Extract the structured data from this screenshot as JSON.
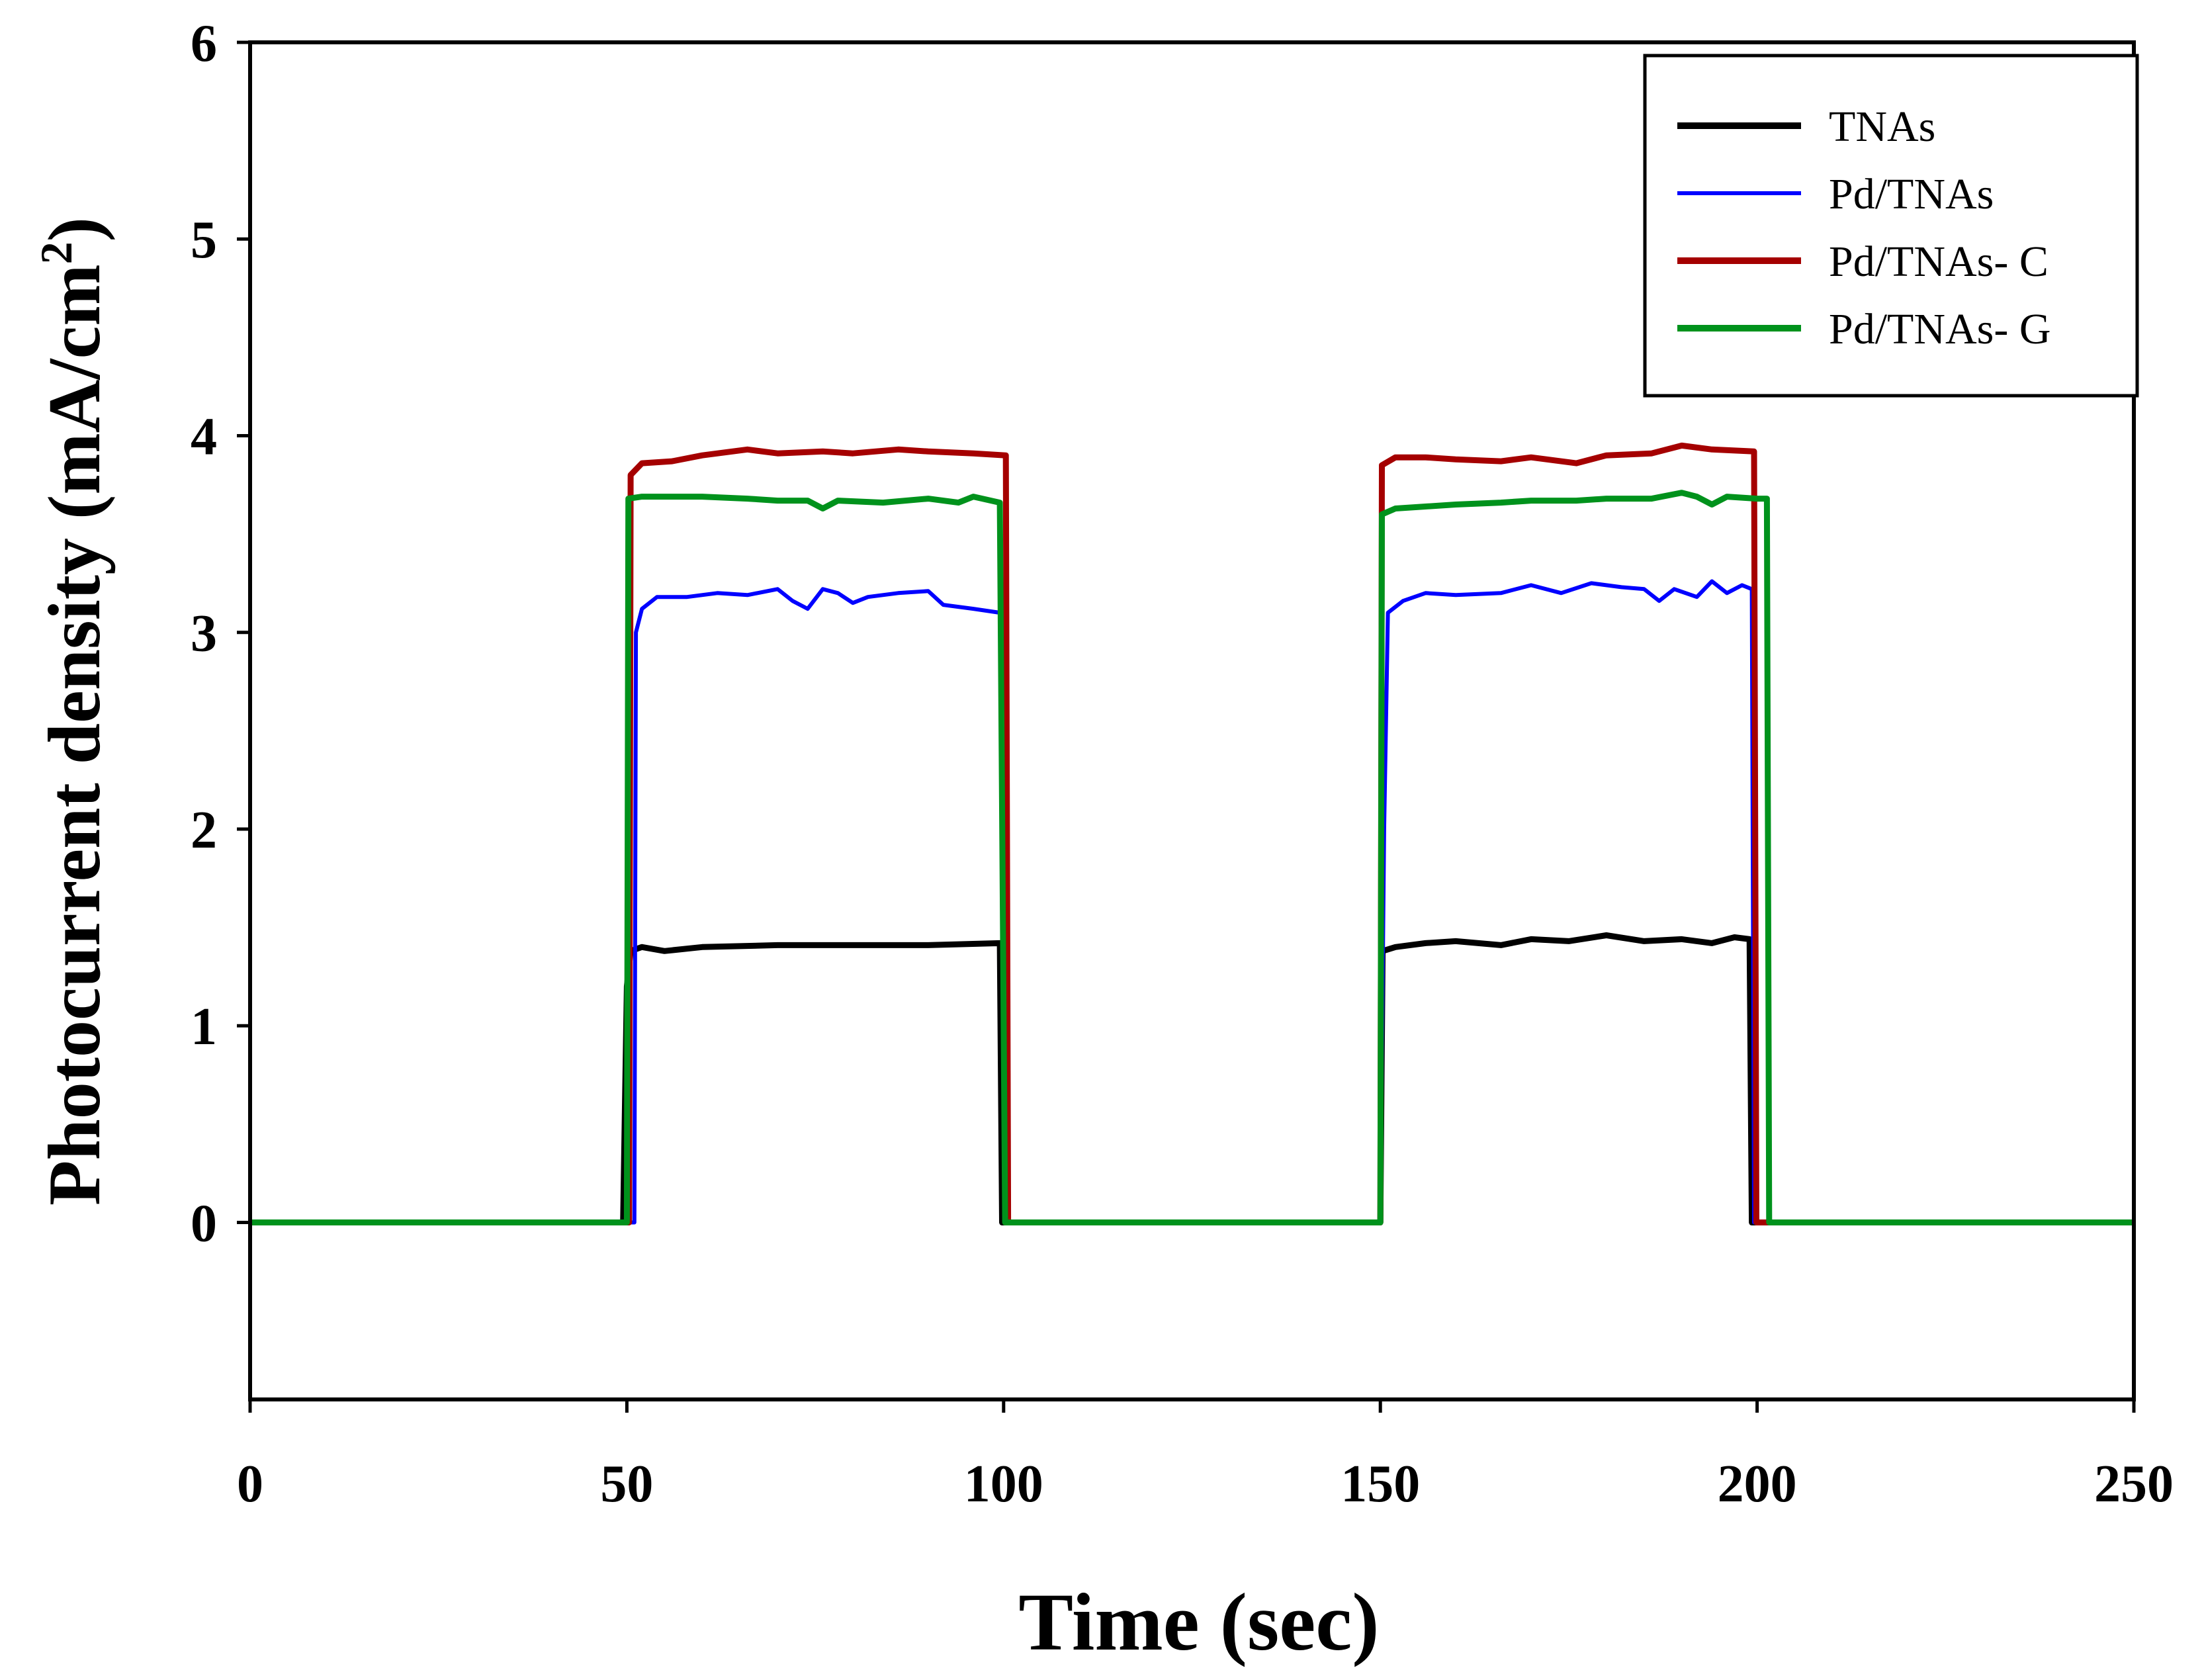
{
  "chart_data": {
    "type": "line",
    "title": "",
    "xlabel": "Time (sec)",
    "ylabel_main": "Photocurrent density (mA/cm",
    "ylabel_sup": "2",
    "ylabel_close": ")",
    "xlim": [
      0,
      250
    ],
    "ylim": [
      -0.9,
      6
    ],
    "xticks": [
      0,
      50,
      100,
      150,
      200,
      250
    ],
    "xtick_labels": [
      "0",
      "50",
      "100",
      "150",
      "200",
      "250"
    ],
    "yticks": [
      0,
      1,
      2,
      3,
      4,
      5,
      6
    ],
    "ytick_labels": [
      "0",
      "1",
      "2",
      "3",
      "4",
      "5",
      "6"
    ],
    "grid": false,
    "legend_position": "top-right",
    "series": [
      {
        "name": "TNAs",
        "color": "#000000",
        "points": [
          [
            0,
            0
          ],
          [
            49.5,
            0
          ],
          [
            50,
            1.2
          ],
          [
            50.5,
            1.38
          ],
          [
            52,
            1.4
          ],
          [
            55,
            1.38
          ],
          [
            60,
            1.4
          ],
          [
            70,
            1.41
          ],
          [
            80,
            1.41
          ],
          [
            90,
            1.41
          ],
          [
            99.5,
            1.42
          ],
          [
            99.8,
            0
          ],
          [
            100.5,
            0
          ],
          [
            150,
            0
          ],
          [
            150.3,
            1.38
          ],
          [
            152,
            1.4
          ],
          [
            156,
            1.42
          ],
          [
            160,
            1.43
          ],
          [
            166,
            1.41
          ],
          [
            170,
            1.44
          ],
          [
            175,
            1.43
          ],
          [
            180,
            1.46
          ],
          [
            185,
            1.43
          ],
          [
            190,
            1.44
          ],
          [
            194,
            1.42
          ],
          [
            197,
            1.45
          ],
          [
            199,
            1.44
          ],
          [
            199.3,
            0
          ],
          [
            250,
            0
          ]
        ]
      },
      {
        "name": "Pd/TNAs",
        "color": "#0000ff",
        "points": [
          [
            0,
            0
          ],
          [
            51,
            0
          ],
          [
            51.2,
            3.0
          ],
          [
            52,
            3.12
          ],
          [
            54,
            3.18
          ],
          [
            58,
            3.18
          ],
          [
            62,
            3.2
          ],
          [
            66,
            3.19
          ],
          [
            70,
            3.22
          ],
          [
            72,
            3.16
          ],
          [
            74,
            3.12
          ],
          [
            76,
            3.22
          ],
          [
            78,
            3.2
          ],
          [
            80,
            3.15
          ],
          [
            82,
            3.18
          ],
          [
            86,
            3.2
          ],
          [
            90,
            3.21
          ],
          [
            92,
            3.14
          ],
          [
            96,
            3.12
          ],
          [
            99.5,
            3.1
          ],
          [
            100.3,
            0
          ],
          [
            150,
            0
          ],
          [
            150.5,
            2.0
          ],
          [
            151,
            3.1
          ],
          [
            153,
            3.16
          ],
          [
            156,
            3.2
          ],
          [
            160,
            3.19
          ],
          [
            166,
            3.2
          ],
          [
            170,
            3.24
          ],
          [
            174,
            3.2
          ],
          [
            178,
            3.25
          ],
          [
            182,
            3.23
          ],
          [
            185,
            3.22
          ],
          [
            187,
            3.16
          ],
          [
            189,
            3.22
          ],
          [
            192,
            3.18
          ],
          [
            194,
            3.26
          ],
          [
            196,
            3.2
          ],
          [
            198,
            3.24
          ],
          [
            199.3,
            3.22
          ],
          [
            199.6,
            0
          ],
          [
            250,
            0
          ]
        ]
      },
      {
        "name": "Pd/TNAs- C",
        "color": "#a50000",
        "points": [
          [
            0,
            0
          ],
          [
            50.3,
            0
          ],
          [
            50.5,
            3.8
          ],
          [
            52,
            3.86
          ],
          [
            56,
            3.87
          ],
          [
            60,
            3.9
          ],
          [
            66,
            3.93
          ],
          [
            70,
            3.91
          ],
          [
            76,
            3.92
          ],
          [
            80,
            3.91
          ],
          [
            86,
            3.93
          ],
          [
            90,
            3.92
          ],
          [
            96,
            3.91
          ],
          [
            100.3,
            3.9
          ],
          [
            100.6,
            0
          ],
          [
            150,
            0
          ],
          [
            150.2,
            3.85
          ],
          [
            152,
            3.89
          ],
          [
            156,
            3.89
          ],
          [
            160,
            3.88
          ],
          [
            166,
            3.87
          ],
          [
            170,
            3.89
          ],
          [
            176,
            3.86
          ],
          [
            180,
            3.9
          ],
          [
            186,
            3.91
          ],
          [
            190,
            3.95
          ],
          [
            194,
            3.93
          ],
          [
            199.6,
            3.92
          ],
          [
            199.9,
            0
          ],
          [
            250,
            0
          ]
        ]
      },
      {
        "name": "Pd/TNAs- G",
        "color": "#00921c",
        "points": [
          [
            0,
            0
          ],
          [
            50,
            0
          ],
          [
            50.2,
            3.68
          ],
          [
            52,
            3.69
          ],
          [
            60,
            3.69
          ],
          [
            66,
            3.68
          ],
          [
            70,
            3.67
          ],
          [
            74,
            3.67
          ],
          [
            76,
            3.63
          ],
          [
            78,
            3.67
          ],
          [
            84,
            3.66
          ],
          [
            90,
            3.68
          ],
          [
            94,
            3.66
          ],
          [
            96,
            3.69
          ],
          [
            99.5,
            3.66
          ],
          [
            100.2,
            0
          ],
          [
            150,
            0
          ],
          [
            150.2,
            3.6
          ],
          [
            152,
            3.63
          ],
          [
            156,
            3.64
          ],
          [
            160,
            3.65
          ],
          [
            166,
            3.66
          ],
          [
            170,
            3.67
          ],
          [
            176,
            3.67
          ],
          [
            180,
            3.68
          ],
          [
            186,
            3.68
          ],
          [
            190,
            3.71
          ],
          [
            192,
            3.69
          ],
          [
            194,
            3.65
          ],
          [
            196,
            3.69
          ],
          [
            200,
            3.68
          ],
          [
            201.3,
            3.68
          ],
          [
            201.6,
            0
          ],
          [
            250,
            0
          ]
        ]
      }
    ]
  }
}
